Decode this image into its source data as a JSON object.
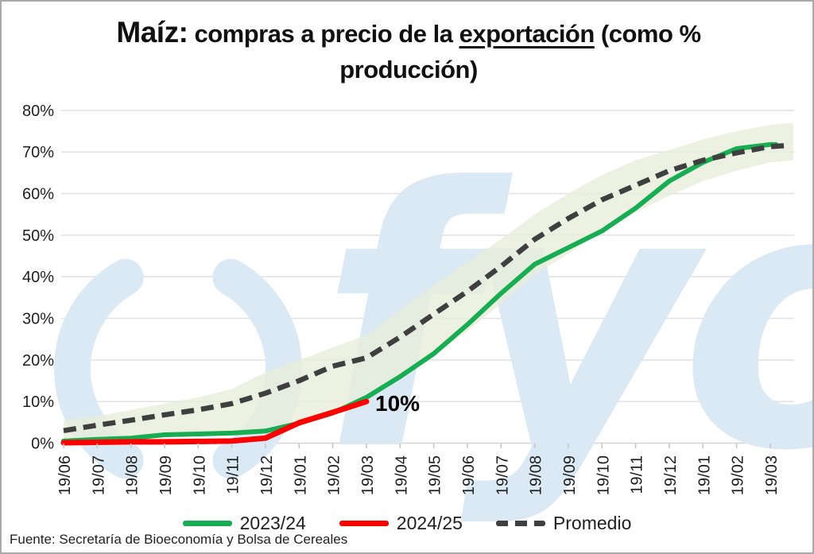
{
  "title": {
    "part1": "Maíz:",
    "part2": " compras a precio de la ",
    "part3": "exportación",
    "part4": " (como % producción)"
  },
  "source": "Fuente: Secretaría de Bioeconomía y Bolsa de Cereales",
  "watermark": {
    "text": "fyo",
    "color": "#DBE9F4"
  },
  "chart_data": {
    "type": "line",
    "title": "Maíz: compras a precio de la exportación (como % producción)",
    "categories": [
      "19/06",
      "19/07",
      "19/08",
      "19/09",
      "19/10",
      "19/11",
      "19/12",
      "19/01",
      "19/02",
      "19/03",
      "19/04",
      "19/05",
      "19/06",
      "19/07",
      "19/08",
      "19/09",
      "19/10",
      "19/11",
      "19/12",
      "19/01",
      "19/02",
      "19/03"
    ],
    "series": [
      {
        "name": "2023/24",
        "color": "#18AD52",
        "style": "solid",
        "values": [
          0.5,
          0.9,
          1.2,
          2.0,
          2.2,
          2.4,
          2.9,
          4.8,
          7.2,
          11,
          16,
          21.5,
          28.5,
          36,
          43,
          47,
          51,
          56.5,
          63,
          67.5,
          70.8,
          71.8
        ],
        "edge_value": 71.8
      },
      {
        "name": "2024/25",
        "color": "#FF0000",
        "style": "solid",
        "values": [
          0.1,
          0.2,
          0.3,
          0.3,
          0.4,
          0.5,
          1.2,
          4.9,
          7.4,
          10
        ],
        "edge_value": null
      },
      {
        "name": "Promedio",
        "color": "#3F3F3F",
        "style": "dashed",
        "values": [
          3,
          4.3,
          5.5,
          6.8,
          8,
          9.5,
          12,
          15,
          18.5,
          20.5,
          25.5,
          31,
          36.5,
          42.5,
          49,
          54,
          58.5,
          62,
          65.5,
          68,
          69.8,
          71.3
        ],
        "edge_value": 71.6
      }
    ],
    "band": {
      "fill": "#E7EEDB",
      "top": [
        5.5,
        6.5,
        8,
        9.5,
        11,
        13,
        17,
        20,
        23,
        26,
        32,
        38,
        43.5,
        49,
        55,
        60,
        64.5,
        68,
        70.5,
        73,
        75,
        76.5
      ],
      "bottom": [
        0.5,
        0.8,
        1.2,
        1.8,
        2.0,
        2.3,
        2.8,
        4.5,
        7,
        10.5,
        15.5,
        21,
        27,
        33.5,
        40.5,
        45.5,
        51,
        55.5,
        59.5,
        63,
        65.5,
        67.5
      ],
      "top_edge": 77,
      "bottom_edge": 68
    },
    "annotation": {
      "text": "10%",
      "category": "19/03",
      "category_index": 9,
      "value": 10
    },
    "ylim": [
      0,
      80
    ],
    "ytick_step": 10,
    "ytick_labels": [
      "0%",
      "10%",
      "20%",
      "30%",
      "40%",
      "50%",
      "60%",
      "70%",
      "80%"
    ],
    "grid": "horizontal",
    "legend_position": "bottom"
  }
}
